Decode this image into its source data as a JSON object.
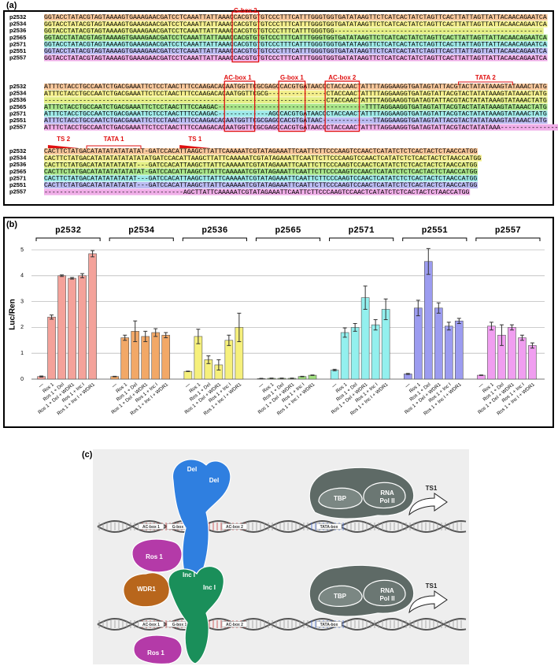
{
  "panel_a": {
    "label": "(a)",
    "colors": [
      "#f8c89c",
      "#f4ef8c",
      "#e4ef86",
      "#a9e58a",
      "#9ee9e8",
      "#bcbcf2",
      "#f0aee8"
    ],
    "annotations": [
      "G-box 2",
      "AC-box 1",
      "G-box 1",
      "AC-box 2",
      "TATA 2",
      "TS 2",
      "TATA 1",
      "TS 1"
    ],
    "blocks": [
      {
        "rows": [
          {
            "name": "p2532",
            "seq": "GGTACCTATACGTAGTAAAAGTGAAAGAACGATCCTCAAATTATTAAACCACGTGTGTCCCTTTCATTTGGGTGGTGATATAAGTTCTCATCACTATCTAGTTCACTTATTAGTTATTACAACAGAATCA"
          },
          {
            "name": "p2534",
            "seq": "GGTACCTATACGTAGTAAAAGTGAAAGAACGATCCTCAAATTATTAAACCACGTGTGTCCCTTTCATTTGGGTGGTGATATAAGTTCTCATCACTATCTAGTTCACTTATTAGTTATTACAACAGAATCA"
          },
          {
            "name": "p2536",
            "seq": "GGTACCTATACGTAGTAAAAGTGAAAGAACGATCCTCAAATTATTAAACCACGTGTGTCCCTTTCATTTGGGTGG------------------------------------------------------"
          },
          {
            "name": "p2565",
            "seq": "GGTACCTATACGTAGTAAAAGTGAAAGAACGATCCTCAAATTATTAAACCACGTGTGTCCCTTTCATTTGGGTGGTGATATAAGTTCTCATCACTATCTAGTTCACTTATTAGTTATTACAACAGAATCA"
          },
          {
            "name": "p2571",
            "seq": "GGTACCTATACGTAGTAAAAGTGAAAGAACGATCCTCAAATTATTAAACCACGTGTGTCCCTTTCATTTGGGTGGTGATATAAGTTCTCATCACTATCTAGTTCACTTATTAGTTATTACAACAGAATCA"
          },
          {
            "name": "p2551",
            "seq": "GGTACCTATACGTAGTAAAAGTGAAAGAACGATCCTCAAATTATTAAACCACGTGTGTCCCTTTCATTTGGGTGGTGATATAAGTTCTCATCACTATCTAGTTCACTTATTAGTTATTACAACAGAATCA"
          },
          {
            "name": "p2557",
            "seq": "GGTACCTATACGTAGTAAAAGTGAAAGAACGATCCTCAAATTATTAAACCACGTGTGTCCCTTTCATTTGGGTGGTGATATAAGTTCTCATCACTATCTAGTTCACTTATTAGTTATTACAACAGAATCA"
          }
        ]
      },
      {
        "rows": [
          {
            "name": "p2532",
            "seq": "ATTTCTACCTGCCAATCTGACGAAATTCTCCTAACTTTCCAAGACACAATGGTTCGCGAGCCACGTGATAACCCTACCAACTATTTTAGGAAGGTGATAGTATTACGTACTATATAAAGTATAAACTATG"
          },
          {
            "name": "p2534",
            "seq": "ATTTCTACCTGCCAATCTGACGAAATTCTCCTAACTTTCCAAGACACAATGGTTCGCG---------------CTACCAACTATTTTAGGAAGGTGATAGTATTACGTACTATATAAAGTATAAACTATG"
          },
          {
            "name": "p2536",
            "seq": "-------------------------------------------------------------------------CTACCAACTATTTTAGGAAGGTGATAGTATTACGTACTATATAAAGTATAAACTATG"
          },
          {
            "name": "p2565",
            "seq": "ATTTCTACCTGCCAATCTGACGAAATTCTCCTAACTTTCCAAGAC--------------------------------------TTTTAGGAAGGTGATAGTATTACGTACTATATAAAGTATAAACTATG"
          },
          {
            "name": "p2571",
            "seq": "ATTTCTACCTGCCAATCTGACGAAATTCTCCTAACTTTCCAAGAC-------------AGCCACGTGATAACCCTACCAACTATTTTAGGAAGGTGATAGTATTACGTACTATATAAAGTATAAACTATG"
          },
          {
            "name": "p2551",
            "seq": "ATTTCTACCTGCCAATCTGACGAAATTCTCCTAACTTTCCAAGACACAATGGTTCGCGAGCCACGTGATAAC-------------TTAGGAAGGTGATAGTATTACGTACTATATAAAGTATAAACTATG"
          },
          {
            "name": "p2557",
            "seq": "ATTTCTACCTGCCAATCTGACGAAATTCTCCTAACTTTCCAAGACACAATGGTTCGCGAGCCACGTGATAACCCTACCAACTATTTTAGGAAGGTGATAGTATTACGTACTATATAAA---------------"
          }
        ]
      },
      {
        "rows": [
          {
            "name": "p2532",
            "seq": "CACTTCTATGACATATATATATATAT-GATCCACATTAAGCTTATTCAAAAATCGTATAGAAATTCAATTCTTCCCAAGTCCAACTCATATCTCTCACTACTCTAACCATGG"
          },
          {
            "name": "p2534",
            "seq": "CACTTCTATGACATATATATATATATATGATCCACATTAAGCTTATTCAAAAATCGTATAGAAATTCAATTCTTCCCAAGTCCAACTCATATCTCTCACTACTCTAACCATGG"
          },
          {
            "name": "p2536",
            "seq": "CACTTCTATGACATATATATATAT---GATCCACATTAAGCTTATTCAAAAATCGTATAGAAATTCAATTCTTCCCAAGTCCAACTCATATCTCTCACTACTCTAACCATGG"
          },
          {
            "name": "p2565",
            "seq": "CACTTCTATGACATATATATATATAT-GATCCACATTAAGCTTATTCAAAAATCGTATAGAAATTCAATTCTTCCCAAGTCCAACTCATATCTCTCACTACTCTAACCATGG"
          },
          {
            "name": "p2571",
            "seq": "CACTTCTATGACATATATATATAT---GATCCACATTAAGCTTATTCAAAAATCGTATAGAAATTCAATTCTTCCCAAGTCCAACTCATATCTCTCACTACTCTAACCATGG"
          },
          {
            "name": "p2551",
            "seq": "CACTTCTATGACATATATATATAT---GATCCACATTAAGCTTATTCAAAAATCGTATAGAAATTCAATTCTTCCCAAGTCCAACTCATATCTCTCACTACTCTAACCATGG"
          },
          {
            "name": "p2557",
            "seq": "------------------------------------AGCTTATTCAAAAATCGTATAGAAATTCAATTCTTCCCAAGTCCAACTCATATCTCTCACTACTCTAACCATGG"
          }
        ]
      }
    ]
  },
  "chart_data": {
    "type": "bar",
    "label": "(b)",
    "ylabel": "Luc/Ren",
    "categories": [
      "—",
      "Ros 1",
      "Ros 1 + Del",
      "Ros 1 + Del + WDR1",
      "Ros 1 + Inc I",
      "Ros 1 + Inc I + WDR1"
    ],
    "ylim": [
      0,
      5
    ],
    "yticks": [
      0,
      1,
      2,
      3,
      4,
      5
    ],
    "grid": true,
    "series": [
      {
        "name": "p2532",
        "color": "#f4a29a",
        "values": [
          0.1,
          2.4,
          4.0,
          3.9,
          4.0,
          4.85
        ],
        "errors": [
          0.02,
          0.08,
          0.03,
          0.03,
          0.08,
          0.12
        ]
      },
      {
        "name": "p2534",
        "color": "#f2a867",
        "values": [
          0.1,
          1.6,
          1.85,
          1.65,
          1.8,
          1.7
        ],
        "errors": [
          0.01,
          0.1,
          0.4,
          0.2,
          0.15,
          0.1
        ]
      },
      {
        "name": "p2536",
        "color": "#f6f07c",
        "values": [
          0.3,
          1.65,
          0.75,
          0.55,
          1.5,
          2.0
        ],
        "errors": [
          0.01,
          0.28,
          0.15,
          0.2,
          0.2,
          0.55
        ]
      },
      {
        "name": "p2565",
        "color": "#a0e07e",
        "values": [
          0.02,
          0.03,
          0.03,
          0.03,
          0.1,
          0.15
        ],
        "errors": [
          0.01,
          0.01,
          0.01,
          0.01,
          0.01,
          0.01
        ]
      },
      {
        "name": "p2571",
        "color": "#93f0ee",
        "values": [
          0.35,
          1.8,
          2.0,
          3.15,
          2.1,
          2.7
        ],
        "errors": [
          0.03,
          0.18,
          0.15,
          0.45,
          0.2,
          0.4
        ]
      },
      {
        "name": "p2551",
        "color": "#9c9cf0",
        "values": [
          0.2,
          2.75,
          4.55,
          2.75,
          2.05,
          2.25
        ],
        "errors": [
          0.02,
          0.3,
          0.5,
          0.2,
          0.15,
          0.1
        ]
      },
      {
        "name": "p2557",
        "color": "#f09ef0",
        "values": [
          0.15,
          2.05,
          1.7,
          2.0,
          1.6,
          1.3
        ],
        "errors": [
          0.01,
          0.15,
          0.4,
          0.1,
          0.1,
          0.1
        ]
      }
    ]
  },
  "panel_c": {
    "label": "(c)",
    "rows": [
      {
        "factors": [
          "Del",
          "Del",
          "Ros 1"
        ],
        "elements": [
          "AC-box 1",
          "G-box 1",
          "AC-box 2",
          "TATA-box"
        ],
        "tbp": "TBP",
        "pol": [
          "RNA",
          "Pol II"
        ],
        "ts": "TS1"
      },
      {
        "factors": [
          "WDR1",
          "Inc I",
          "Inc I",
          "Ros 1"
        ],
        "elements": [
          "AC-box 1",
          "G-box 1",
          "AC-box 2",
          "TATA-box"
        ],
        "tbp": "TBP",
        "pol": [
          "RNA",
          "Pol II"
        ],
        "ts": "TS1"
      }
    ]
  }
}
